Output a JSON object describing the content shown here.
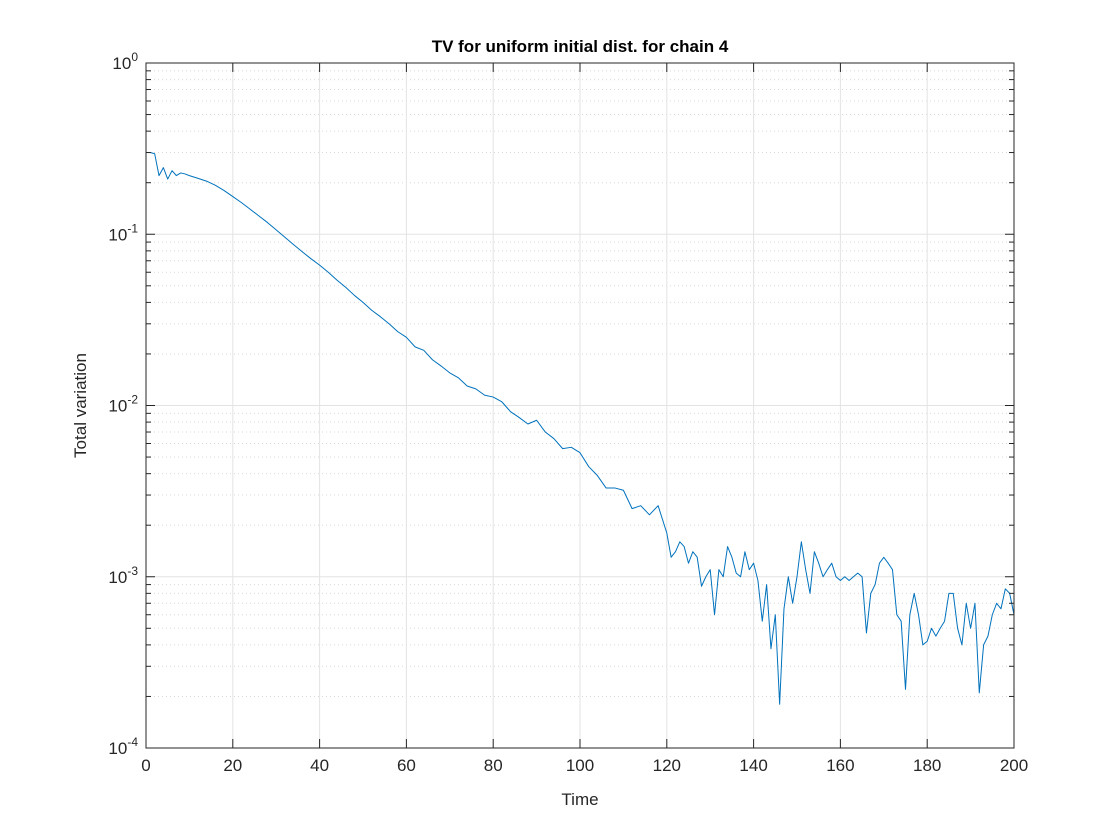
{
  "chart_data": {
    "type": "line",
    "title": "TV for uniform initial dist. for chain 4",
    "x_label": "Time",
    "y_label": "Total variation",
    "log_y": true,
    "grid": true,
    "minor_grid": true,
    "color": "#0072bd",
    "xlim": [
      0,
      200
    ],
    "xticks": [
      0,
      20,
      40,
      60,
      80,
      100,
      120,
      140,
      160,
      180,
      200
    ],
    "ylim": [
      0.0001,
      1
    ],
    "yticks": [
      {
        "value": 0.0001,
        "label": "10^-4"
      },
      {
        "value": 0.001,
        "label": "10^-3"
      },
      {
        "value": 0.01,
        "label": "10^-2"
      },
      {
        "value": 0.1,
        "label": "10^-1"
      },
      {
        "value": 1,
        "label": "10^0"
      }
    ],
    "yminorticks": [
      0.0002,
      0.0003,
      0.0004,
      0.0005,
      0.0006,
      0.0007,
      0.0008,
      0.0009,
      0.002,
      0.003,
      0.004,
      0.005,
      0.006,
      0.007,
      0.008,
      0.009,
      0.02,
      0.03,
      0.04,
      0.05,
      0.06,
      0.07,
      0.08,
      0.09,
      0.2,
      0.3,
      0.4,
      0.5,
      0.6,
      0.7,
      0.8,
      0.9
    ],
    "x": [
      0,
      1,
      2,
      3,
      4,
      5,
      6,
      7,
      8,
      9,
      10,
      12,
      14,
      16,
      18,
      20,
      22,
      24,
      26,
      28,
      30,
      32,
      34,
      36,
      38,
      40,
      42,
      44,
      46,
      48,
      50,
      52,
      54,
      56,
      58,
      60,
      62,
      64,
      66,
      68,
      70,
      72,
      74,
      76,
      78,
      80,
      82,
      84,
      86,
      88,
      90,
      92,
      94,
      96,
      98,
      100,
      102,
      104,
      106,
      108,
      110,
      112,
      114,
      116,
      118,
      120,
      121,
      122,
      123,
      124,
      125,
      126,
      127,
      128,
      129,
      130,
      131,
      132,
      133,
      134,
      135,
      136,
      137,
      138,
      139,
      140,
      141,
      142,
      143,
      144,
      145,
      146,
      147,
      148,
      149,
      150,
      151,
      152,
      153,
      154,
      155,
      156,
      157,
      158,
      159,
      160,
      161,
      162,
      163,
      164,
      165,
      166,
      167,
      168,
      169,
      170,
      171,
      172,
      173,
      174,
      175,
      176,
      177,
      178,
      179,
      180,
      181,
      182,
      183,
      184,
      185,
      186,
      187,
      188,
      189,
      190,
      191,
      192,
      193,
      194,
      195,
      196,
      197,
      198,
      199,
      200
    ],
    "values": [
      0.3,
      0.3,
      0.295,
      0.22,
      0.245,
      0.21,
      0.235,
      0.22,
      0.228,
      0.225,
      0.22,
      0.212,
      0.204,
      0.193,
      0.18,
      0.166,
      0.153,
      0.14,
      0.128,
      0.117,
      0.106,
      0.096,
      0.087,
      0.079,
      0.072,
      0.066,
      0.06,
      0.054,
      0.049,
      0.044,
      0.04,
      0.036,
      0.033,
      0.03,
      0.027,
      0.025,
      0.022,
      0.021,
      0.0185,
      0.017,
      0.0155,
      0.0145,
      0.013,
      0.0125,
      0.0115,
      0.0112,
      0.0105,
      0.0092,
      0.0085,
      0.0078,
      0.0082,
      0.007,
      0.0064,
      0.0056,
      0.0057,
      0.0053,
      0.0044,
      0.0039,
      0.0033,
      0.0033,
      0.0032,
      0.0025,
      0.0026,
      0.0023,
      0.0026,
      0.0018,
      0.0013,
      0.0014,
      0.0016,
      0.0015,
      0.0012,
      0.0014,
      0.0013,
      0.00088,
      0.001,
      0.0011,
      0.0006,
      0.0011,
      0.001,
      0.0015,
      0.0013,
      0.00105,
      0.001,
      0.0014,
      0.0011,
      0.0012,
      0.00095,
      0.00055,
      0.0009,
      0.00038,
      0.0006,
      0.00018,
      0.00065,
      0.001,
      0.0007,
      0.001,
      0.0016,
      0.0011,
      0.0008,
      0.0014,
      0.0012,
      0.001,
      0.0011,
      0.0012,
      0.001,
      0.00095,
      0.001,
      0.00095,
      0.001,
      0.00105,
      0.001,
      0.00047,
      0.0008,
      0.0009,
      0.0012,
      0.0013,
      0.0012,
      0.0011,
      0.0006,
      0.00055,
      0.00022,
      0.0006,
      0.0008,
      0.0006,
      0.0004,
      0.00042,
      0.0005,
      0.00045,
      0.0005,
      0.00055,
      0.0008,
      0.0008,
      0.0005,
      0.0004,
      0.0007,
      0.0005,
      0.0007,
      0.00021,
      0.0004,
      0.00045,
      0.0006,
      0.0007,
      0.00065,
      0.00085,
      0.0008,
      0.0006
    ]
  }
}
